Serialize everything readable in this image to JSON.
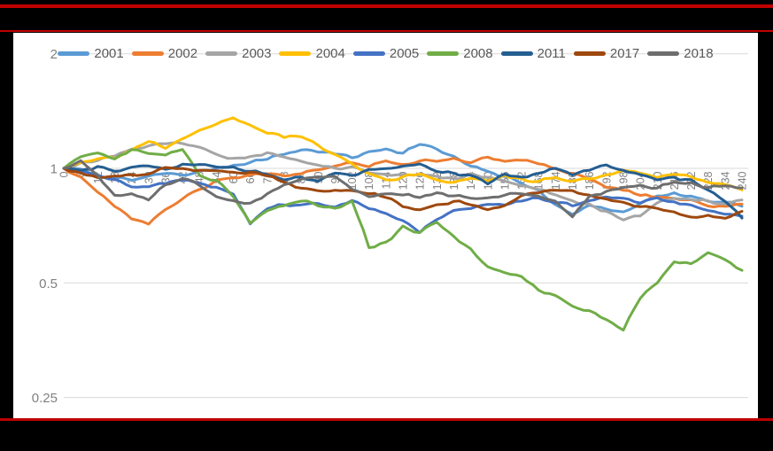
{
  "frame": {
    "background_color": "#000000",
    "accent_line_color": "#C00000",
    "panel_color": "#FFFFFF"
  },
  "chart_data": {
    "type": "line",
    "title": "",
    "legend_position": "top",
    "grid": true,
    "grid_color": "#D9D9D9",
    "axis_label_color": "#808080",
    "legend_text_color": "#595959",
    "y_axis": {
      "scale": "log2",
      "ticks": [
        2,
        1,
        0.5,
        0.25
      ],
      "tick_labels": [
        "2",
        "1",
        "0.5",
        "0.25"
      ],
      "range": [
        0.25,
        2
      ]
    },
    "x_axis": {
      "tick_start": 0,
      "tick_step": 6,
      "tick_end": 240,
      "label_rotation_deg": -90,
      "tick_labels": [
        "0",
        "6",
        "12",
        "18",
        "24",
        "30",
        "36",
        "42",
        "48",
        "54",
        "60",
        "66",
        "72",
        "78",
        "84",
        "90",
        "96",
        "102",
        "108",
        "114",
        "120",
        "126",
        "132",
        "138",
        "144",
        "150",
        "156",
        "162",
        "168",
        "174",
        "180",
        "186",
        "192",
        "198",
        "204",
        "210",
        "216",
        "222",
        "228",
        "234",
        "240"
      ]
    },
    "keypoint_day_step": 6,
    "series": [
      {
        "name": "2001",
        "color": "#5B9BD5",
        "values": [
          1.0,
          0.99,
          0.96,
          0.94,
          0.93,
          0.95,
          0.97,
          0.96,
          0.98,
          1.0,
          1.02,
          1.04,
          1.06,
          1.09,
          1.12,
          1.11,
          1.09,
          1.07,
          1.1,
          1.13,
          1.1,
          1.16,
          1.12,
          1.07,
          1.01,
          0.98,
          0.95,
          0.92,
          0.87,
          0.8,
          0.76,
          0.8,
          0.78,
          0.77,
          0.81,
          0.84,
          0.86,
          0.84,
          0.82,
          0.81,
          0.8
        ]
      },
      {
        "name": "2002",
        "color": "#ED7D31",
        "values": [
          1.0,
          0.95,
          0.86,
          0.79,
          0.74,
          0.71,
          0.78,
          0.83,
          0.88,
          0.92,
          0.95,
          0.96,
          0.97,
          0.95,
          0.96,
          1.0,
          1.02,
          1.03,
          1.01,
          1.04,
          1.03,
          1.05,
          1.04,
          1.06,
          1.04,
          1.07,
          1.05,
          1.06,
          1.03,
          1.0,
          0.97,
          0.93,
          0.9,
          0.87,
          0.85,
          0.84,
          0.83,
          0.82,
          0.8,
          0.79,
          0.8
        ]
      },
      {
        "name": "2003",
        "color": "#A5A5A5",
        "values": [
          1.0,
          1.03,
          1.05,
          1.08,
          1.12,
          1.14,
          1.16,
          1.17,
          1.13,
          1.08,
          1.06,
          1.08,
          1.1,
          1.07,
          1.05,
          1.03,
          1.0,
          1.01,
          0.98,
          0.97,
          0.96,
          0.97,
          0.95,
          0.94,
          0.96,
          0.95,
          0.93,
          0.91,
          0.88,
          0.85,
          0.82,
          0.8,
          0.77,
          0.73,
          0.75,
          0.81,
          0.84,
          0.83,
          0.82,
          0.81,
          0.82
        ]
      },
      {
        "name": "2004",
        "color": "#FFC000",
        "values": [
          1.0,
          1.04,
          1.07,
          1.06,
          1.12,
          1.17,
          1.14,
          1.2,
          1.26,
          1.3,
          1.36,
          1.3,
          1.25,
          1.21,
          1.22,
          1.15,
          1.08,
          1.02,
          0.97,
          0.93,
          0.95,
          0.97,
          0.93,
          0.91,
          0.94,
          0.92,
          0.96,
          0.94,
          0.92,
          0.95,
          0.92,
          0.94,
          0.96,
          0.99,
          0.97,
          0.94,
          0.97,
          0.95,
          0.92,
          0.9,
          0.88
        ]
      },
      {
        "name": "2005",
        "color": "#4472C4",
        "values": [
          1.0,
          0.98,
          0.95,
          0.93,
          0.9,
          0.9,
          0.92,
          0.93,
          0.91,
          0.89,
          0.86,
          0.72,
          0.79,
          0.8,
          0.8,
          0.81,
          0.79,
          0.82,
          0.78,
          0.76,
          0.73,
          0.68,
          0.74,
          0.77,
          0.79,
          0.81,
          0.8,
          0.82,
          0.84,
          0.82,
          0.8,
          0.82,
          0.84,
          0.83,
          0.81,
          0.83,
          0.82,
          0.8,
          0.78,
          0.76,
          0.75
        ]
      },
      {
        "name": "2008",
        "color": "#70AD47",
        "values": [
          1.0,
          1.08,
          1.1,
          1.06,
          1.12,
          1.1,
          1.08,
          1.13,
          0.96,
          0.93,
          0.84,
          0.72,
          0.78,
          0.8,
          0.82,
          0.8,
          0.78,
          0.82,
          0.62,
          0.64,
          0.7,
          0.68,
          0.72,
          0.66,
          0.61,
          0.55,
          0.53,
          0.52,
          0.48,
          0.46,
          0.435,
          0.42,
          0.4,
          0.375,
          0.46,
          0.5,
          0.57,
          0.56,
          0.6,
          0.57,
          0.54
        ]
      },
      {
        "name": "2011",
        "color": "#255E91",
        "values": [
          1.0,
          0.99,
          1.01,
          0.98,
          1.0,
          1.02,
          0.99,
          1.03,
          1.02,
          1.0,
          1.01,
          0.98,
          0.97,
          0.94,
          0.95,
          0.93,
          0.97,
          0.96,
          0.99,
          1.0,
          1.02,
          1.03,
          0.99,
          0.97,
          0.96,
          0.92,
          0.96,
          0.95,
          0.97,
          1.0,
          0.97,
          0.99,
          1.02,
          0.99,
          0.96,
          0.93,
          0.95,
          0.93,
          0.88,
          0.82,
          0.74
        ]
      },
      {
        "name": "2017",
        "color": "#9E480E",
        "values": [
          1.0,
          0.97,
          0.94,
          0.96,
          0.96,
          0.97,
          1.0,
          1.0,
          0.99,
          0.98,
          0.97,
          0.97,
          0.96,
          0.92,
          0.89,
          0.88,
          0.88,
          0.87,
          0.86,
          0.84,
          0.79,
          0.78,
          0.8,
          0.82,
          0.8,
          0.78,
          0.8,
          0.85,
          0.87,
          0.87,
          0.87,
          0.85,
          0.83,
          0.81,
          0.79,
          0.78,
          0.76,
          0.74,
          0.75,
          0.74,
          0.77
        ]
      },
      {
        "name": "2018",
        "color": "#6E6E6E",
        "values": [
          1.0,
          1.04,
          0.96,
          0.84,
          0.86,
          0.83,
          0.9,
          0.95,
          0.91,
          0.84,
          0.82,
          0.81,
          0.86,
          0.9,
          0.93,
          0.96,
          0.95,
          0.88,
          0.85,
          0.86,
          0.85,
          0.84,
          0.86,
          0.85,
          0.84,
          0.83,
          0.85,
          0.86,
          0.85,
          0.82,
          0.74,
          0.84,
          0.87,
          0.89,
          0.91,
          0.89,
          0.92,
          0.91,
          0.89,
          0.9,
          0.885
        ]
      }
    ]
  }
}
